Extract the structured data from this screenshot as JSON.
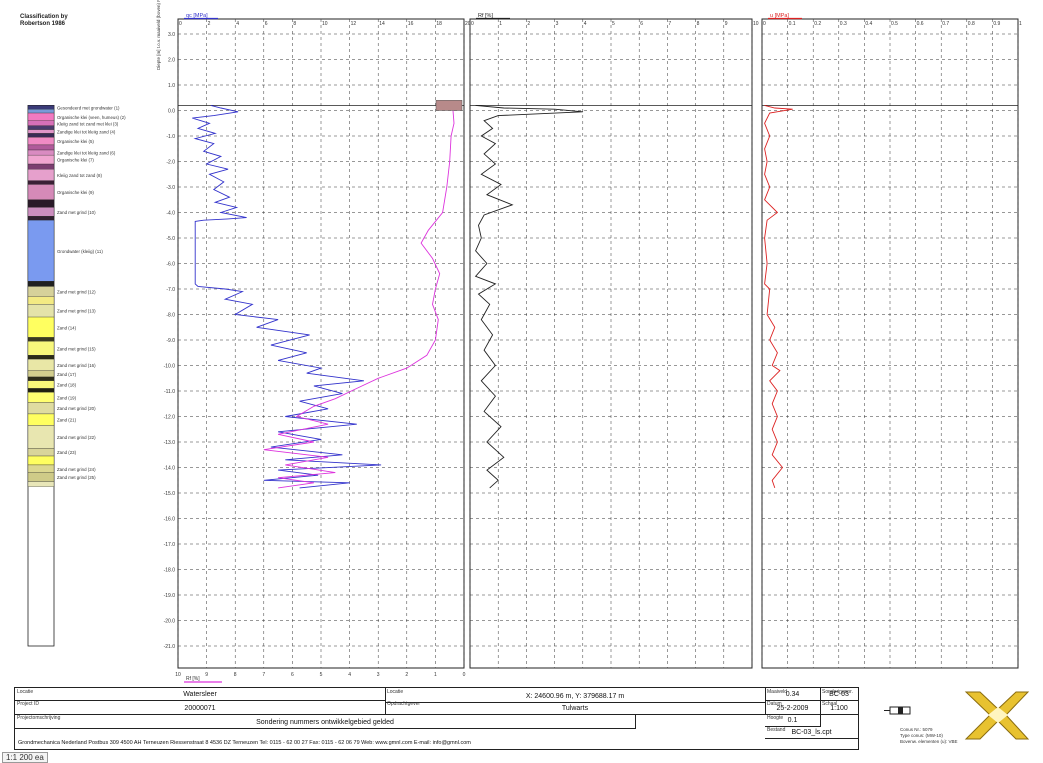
{
  "title_tabs": [
    "",
    "",
    "",
    ""
  ],
  "legend_title": [
    "Classification by",
    "Robertson 1986"
  ],
  "depth_axis_label": "Diepte [m] t.o.v. maaiveld (boven) NAP",
  "status_text": "1:1 200 ea",
  "layers": [
    {
      "top": 0.2,
      "bottom": 0.05,
      "color": "#3a3a78",
      "label": "Gesondeerd met grondwater (1)"
    },
    {
      "top": 0.05,
      "bottom": -0.1,
      "color": "#7a9ad8",
      "label": ""
    },
    {
      "top": -0.1,
      "bottom": -0.4,
      "color": "#f27ac1",
      "label": "Organische klei (veen, humeus) (2)"
    },
    {
      "top": -0.4,
      "bottom": -0.6,
      "color": "#d870b8",
      "label": "Kleiig zand tot zand met klei (3)"
    },
    {
      "top": -0.6,
      "bottom": -0.75,
      "color": "#4b3b6b",
      "label": ""
    },
    {
      "top": -0.75,
      "bottom": -0.9,
      "color": "#e095c8",
      "label": "Zandige klei tot kleiig zand (4)"
    },
    {
      "top": -0.9,
      "bottom": -1.05,
      "color": "#3a2b55",
      "label": ""
    },
    {
      "top": -1.05,
      "bottom": -1.35,
      "color": "#f08ac4",
      "label": "Organische klei (5)"
    },
    {
      "top": -1.35,
      "bottom": -1.55,
      "color": "#b05a9a",
      "label": ""
    },
    {
      "top": -1.55,
      "bottom": -1.75,
      "color": "#d98bc1",
      "label": "Zandige klei tot kleiig zand (6)"
    },
    {
      "top": -1.75,
      "bottom": -2.1,
      "color": "#f0a5d0",
      "label": "Organische klei (7)"
    },
    {
      "top": -2.1,
      "bottom": -2.3,
      "color": "#7b3e70",
      "label": ""
    },
    {
      "top": -2.3,
      "bottom": -2.75,
      "color": "#e6a0cc",
      "label": "Kleiig zand tot zand (8)"
    },
    {
      "top": -2.75,
      "bottom": -2.9,
      "color": "#3a2035",
      "label": ""
    },
    {
      "top": -2.9,
      "bottom": -3.5,
      "color": "#d58ab8",
      "label": "Organische klei (9)"
    },
    {
      "top": -3.5,
      "bottom": -3.8,
      "color": "#2a1a28",
      "label": ""
    },
    {
      "top": -3.8,
      "bottom": -4.15,
      "color": "#cc8ebf",
      "label": "Zand met grind (10)"
    },
    {
      "top": -4.15,
      "bottom": -4.3,
      "color": "#312030",
      "label": ""
    },
    {
      "top": -4.3,
      "bottom": -6.7,
      "color": "#7a9af0",
      "label": "Grondwater (kleiig) (11)"
    },
    {
      "top": -6.7,
      "bottom": -6.9,
      "color": "#202020",
      "label": ""
    },
    {
      "top": -6.9,
      "bottom": -7.3,
      "color": "#d6d19a",
      "label": "Zand met grind (12)"
    },
    {
      "top": -7.3,
      "bottom": -7.6,
      "color": "#f3ea83",
      "label": ""
    },
    {
      "top": -7.6,
      "bottom": -8.1,
      "color": "#e4e3a9",
      "label": "Zand met grind (13)"
    },
    {
      "top": -8.1,
      "bottom": -8.9,
      "color": "#ffff60",
      "label": "Zand (14)"
    },
    {
      "top": -8.9,
      "bottom": -9.05,
      "color": "#3a3a20",
      "label": ""
    },
    {
      "top": -9.05,
      "bottom": -9.6,
      "color": "#f7f77c",
      "label": "Zand met grind (15)"
    },
    {
      "top": -9.6,
      "bottom": -9.75,
      "color": "#2b2b18",
      "label": ""
    },
    {
      "top": -9.75,
      "bottom": -10.2,
      "color": "#e9e7a6",
      "label": "Zand met grind (16)"
    },
    {
      "top": -10.2,
      "bottom": -10.45,
      "color": "#d2ce8e",
      "label": "Zand (17)"
    },
    {
      "top": -10.45,
      "bottom": -10.6,
      "color": "#2d2d1a",
      "label": ""
    },
    {
      "top": -10.6,
      "bottom": -10.9,
      "color": "#f9f77a",
      "label": "Zand (18)"
    },
    {
      "top": -10.9,
      "bottom": -11.05,
      "color": "#202010",
      "label": ""
    },
    {
      "top": -11.05,
      "bottom": -11.45,
      "color": "#ffff70",
      "label": "Zand (19)"
    },
    {
      "top": -11.45,
      "bottom": -11.9,
      "color": "#dfdca0",
      "label": "Zand met grind (20)"
    },
    {
      "top": -11.9,
      "bottom": -12.35,
      "color": "#ffff60",
      "label": "Zand (21)"
    },
    {
      "top": -12.35,
      "bottom": -13.25,
      "color": "#e8e6b0",
      "label": "Zand met grind (22)"
    },
    {
      "top": -13.25,
      "bottom": -13.55,
      "color": "#d9d59a",
      "label": "Zand (23)"
    },
    {
      "top": -13.55,
      "bottom": -13.9,
      "color": "#ffff60",
      "label": ""
    },
    {
      "top": -13.9,
      "bottom": -14.2,
      "color": "#dcd890",
      "label": "Zand met grind (24)"
    },
    {
      "top": -14.2,
      "bottom": -14.55,
      "color": "#cfcb88",
      "label": "Zand met grind (25)"
    },
    {
      "top": -14.55,
      "bottom": -14.75,
      "color": "#e8e6b8",
      "label": ""
    }
  ],
  "chart_data": [
    {
      "type": "line",
      "title": "",
      "xlabel": "qc [MPa]",
      "xlabel2": "Rf [%]",
      "ylabel": "Diepte [m] t.o.v. NAP",
      "ylim": [
        -21.0,
        3.5
      ],
      "y_ticks": [
        3,
        2,
        1,
        0,
        -1,
        -2,
        -3,
        -4,
        -5,
        -6,
        -7,
        -8,
        -9,
        -10,
        -11,
        -12,
        -13,
        -14,
        -15,
        -16,
        -17,
        -18,
        -19,
        -20,
        -21
      ],
      "x_ticks_top": [
        0,
        2,
        4,
        6,
        8,
        10,
        12,
        14,
        16,
        18,
        20
      ],
      "x_ticks_bottom": [
        10,
        9,
        8,
        7,
        6,
        5,
        4,
        3,
        2,
        1,
        0
      ],
      "xlim": [
        0,
        20
      ],
      "grid": true,
      "series": [
        {
          "name": "qc",
          "color": "#3333cc",
          "points": [
            [
              2.3,
              0.2
            ],
            [
              3.0,
              0.1
            ],
            [
              4.2,
              -0.05
            ],
            [
              2.5,
              -0.2
            ],
            [
              1.0,
              -0.3
            ],
            [
              2.2,
              -0.5
            ],
            [
              1.4,
              -0.7
            ],
            [
              2.6,
              -0.9
            ],
            [
              1.2,
              -1.1
            ],
            [
              2.5,
              -1.3
            ],
            [
              1.8,
              -1.6
            ],
            [
              3.0,
              -1.8
            ],
            [
              2.0,
              -2.1
            ],
            [
              3.5,
              -2.3
            ],
            [
              2.2,
              -2.5
            ],
            [
              3.2,
              -2.8
            ],
            [
              2.5,
              -3.1
            ],
            [
              3.6,
              -3.4
            ],
            [
              2.6,
              -3.6
            ],
            [
              4.1,
              -3.8
            ],
            [
              3.0,
              -4.0
            ],
            [
              4.8,
              -4.2
            ],
            [
              3.5,
              -4.25
            ],
            [
              1.8,
              -4.3
            ],
            [
              1.2,
              -4.35
            ],
            [
              1.2,
              -6.8
            ],
            [
              1.4,
              -6.9
            ],
            [
              3.3,
              -7.0
            ],
            [
              4.5,
              -7.1
            ],
            [
              3.3,
              -7.4
            ],
            [
              5.2,
              -7.6
            ],
            [
              4.0,
              -8.0
            ],
            [
              7.0,
              -8.2
            ],
            [
              5.5,
              -8.5
            ],
            [
              9.2,
              -8.8
            ],
            [
              6.5,
              -9.2
            ],
            [
              9.0,
              -9.5
            ],
            [
              7.0,
              -9.8
            ],
            [
              10.0,
              -10.1
            ],
            [
              9.0,
              -10.3
            ],
            [
              13.0,
              -10.6
            ],
            [
              9.5,
              -10.8
            ],
            [
              11.5,
              -11.1
            ],
            [
              8.5,
              -11.4
            ],
            [
              10.5,
              -11.7
            ],
            [
              7.5,
              -12.0
            ],
            [
              12.5,
              -12.3
            ],
            [
              7.0,
              -12.6
            ],
            [
              10.0,
              -12.9
            ],
            [
              6.5,
              -13.2
            ],
            [
              11.5,
              -13.5
            ],
            [
              7.5,
              -13.7
            ],
            [
              14.2,
              -13.9
            ],
            [
              7.0,
              -14.1
            ],
            [
              9.8,
              -14.3
            ],
            [
              6.0,
              -14.5
            ],
            [
              12.0,
              -14.6
            ],
            [
              8.5,
              -14.8
            ]
          ]
        },
        {
          "name": "Rf",
          "color": "#dd33dd",
          "points": [
            [
              19.2,
              0.2
            ],
            [
              19.3,
              -0.5
            ],
            [
              19.1,
              -1.0
            ],
            [
              19.0,
              -2.0
            ],
            [
              18.8,
              -3.0
            ],
            [
              18.5,
              -4.0
            ],
            [
              17.5,
              -4.7
            ],
            [
              17.0,
              -5.2
            ],
            [
              17.8,
              -5.8
            ],
            [
              18.3,
              -6.4
            ],
            [
              18.0,
              -7.0
            ],
            [
              17.8,
              -7.6
            ],
            [
              18.2,
              -8.2
            ],
            [
              18.0,
              -9.0
            ],
            [
              17.4,
              -9.6
            ],
            [
              16.0,
              -10.1
            ],
            [
              14.0,
              -10.5
            ],
            [
              12.5,
              -10.9
            ],
            [
              11.0,
              -11.3
            ],
            [
              9.5,
              -11.6
            ],
            [
              8.3,
              -12.0
            ],
            [
              10.5,
              -12.3
            ],
            [
              7.0,
              -12.7
            ],
            [
              9.5,
              -13.0
            ],
            [
              6.0,
              -13.3
            ],
            [
              10.5,
              -13.6
            ],
            [
              7.5,
              -13.9
            ],
            [
              11.0,
              -14.2
            ],
            [
              7.0,
              -14.4
            ],
            [
              9.5,
              -14.6
            ],
            [
              7.0,
              -14.8
            ]
          ]
        }
      ]
    },
    {
      "type": "line",
      "title": "",
      "xlabel": "Rf [%]",
      "ylim": [
        -21.0,
        3.5
      ],
      "xlim": [
        0,
        10
      ],
      "x_ticks_top": [
        0,
        1,
        2,
        3,
        4,
        5,
        6,
        7,
        8,
        9,
        10
      ],
      "grid": true,
      "series": [
        {
          "name": "Rf",
          "color": "#222222",
          "points": [
            [
              0.2,
              0.2
            ],
            [
              1.2,
              0.1
            ],
            [
              3.0,
              0.05
            ],
            [
              4.0,
              -0.05
            ],
            [
              1.0,
              -0.2
            ],
            [
              0.5,
              -0.4
            ],
            [
              0.8,
              -0.7
            ],
            [
              0.4,
              -1.0
            ],
            [
              0.9,
              -1.3
            ],
            [
              0.5,
              -1.7
            ],
            [
              0.9,
              -2.1
            ],
            [
              0.4,
              -2.5
            ],
            [
              1.1,
              -2.9
            ],
            [
              0.6,
              -3.3
            ],
            [
              1.5,
              -3.7
            ],
            [
              0.5,
              -4.1
            ],
            [
              0.3,
              -4.5
            ],
            [
              0.4,
              -5.0
            ],
            [
              0.2,
              -5.5
            ],
            [
              0.6,
              -6.0
            ],
            [
              0.2,
              -6.5
            ],
            [
              0.9,
              -6.8
            ],
            [
              0.3,
              -7.2
            ],
            [
              0.7,
              -7.6
            ],
            [
              0.4,
              -8.2
            ],
            [
              0.8,
              -8.8
            ],
            [
              0.5,
              -9.4
            ],
            [
              0.9,
              -10.0
            ],
            [
              0.4,
              -10.6
            ],
            [
              0.9,
              -11.2
            ],
            [
              0.5,
              -11.8
            ],
            [
              1.1,
              -12.4
            ],
            [
              0.6,
              -13.0
            ],
            [
              1.2,
              -13.6
            ],
            [
              0.6,
              -14.1
            ],
            [
              1.0,
              -14.5
            ],
            [
              0.7,
              -14.8
            ]
          ]
        }
      ]
    },
    {
      "type": "line",
      "title": "",
      "xlabel": "u [MPa]",
      "ylim": [
        -21.0,
        3.5
      ],
      "xlim": [
        0,
        1.0
      ],
      "x_ticks_top": [
        0,
        0.1,
        0.2,
        0.3,
        0.4,
        0.5,
        0.6,
        0.7,
        0.8,
        0.9,
        1.0
      ],
      "grid": true,
      "series": [
        {
          "name": "u",
          "color": "#dd2222",
          "points": [
            [
              0.01,
              0.2
            ],
            [
              0.05,
              0.1
            ],
            [
              0.12,
              0.05
            ],
            [
              0.03,
              -0.1
            ],
            [
              0.01,
              -0.5
            ],
            [
              0.03,
              -1.0
            ],
            [
              0.01,
              -1.5
            ],
            [
              0.02,
              -2.0
            ],
            [
              0.01,
              -2.5
            ],
            [
              0.03,
              -3.0
            ],
            [
              0.01,
              -3.5
            ],
            [
              0.06,
              -4.0
            ],
            [
              0.02,
              -4.3
            ],
            [
              0.01,
              -5.0
            ],
            [
              0.02,
              -6.0
            ],
            [
              0.01,
              -6.8
            ],
            [
              0.03,
              -7.0
            ],
            [
              0.02,
              -8.0
            ],
            [
              0.05,
              -8.5
            ],
            [
              0.03,
              -9.0
            ],
            [
              0.06,
              -9.5
            ],
            [
              0.04,
              -10.0
            ],
            [
              0.07,
              -10.2
            ],
            [
              0.03,
              -10.6
            ],
            [
              0.06,
              -11.0
            ],
            [
              0.04,
              -11.5
            ],
            [
              0.06,
              -12.0
            ],
            [
              0.04,
              -12.5
            ],
            [
              0.06,
              -13.0
            ],
            [
              0.04,
              -13.5
            ],
            [
              0.08,
              -14.0
            ],
            [
              0.04,
              -14.5
            ],
            [
              0.05,
              -14.8
            ]
          ]
        }
      ]
    }
  ],
  "footer": {
    "cells": [
      {
        "label": "Locatie",
        "value": "Watersleer"
      },
      {
        "label": "Project ID",
        "value": "20000071"
      },
      {
        "label": "Projectomschrijving",
        "value": "Sondering nummers ontwikkelgebied gelded"
      },
      {
        "label": "Locatie",
        "value": "X: 24600.96 m, Y: 379688.17 m"
      },
      {
        "label": "Opdrachtgever",
        "value": "Tulwarts"
      },
      {
        "label": "Maaiveld",
        "value": "0.34"
      },
      {
        "label": "Datum",
        "value": "25-2-2009"
      },
      {
        "label": "Hoogte",
        "value": "0.1"
      },
      {
        "label": "Bestand",
        "value": "BC-03_ls.cpt"
      },
      {
        "label": "Sonderingsnr.",
        "value": "BC-03"
      },
      {
        "label": "Schaal",
        "value": "1:100"
      }
    ],
    "address": "Grondmechanica Nederland    Postbus 309    4500 AH Terneuzen    Riessenstraat 8    4536 DZ Terneuzen    Tel: 0115 - 62 00 27    Fax: 0115 - 62 06 79    Web: www.gmnl.com    E-mail: info@gmnl.com",
    "small_notes": [
      "Conus Nr.: 5079",
      "Type conus: (MW-10)",
      "Bovenw. elementen (u): VBE"
    ]
  },
  "brand_colors": {
    "qc": "#3333cc",
    "rf_line": "#dd33dd",
    "rf_panel": "#222222",
    "u": "#dd2222",
    "logo": "#e8c230"
  }
}
